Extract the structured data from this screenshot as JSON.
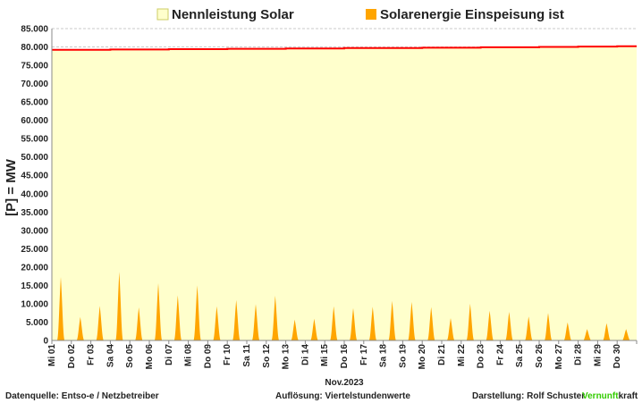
{
  "legend": {
    "capacity_label": "Nennleistung Solar",
    "feed_in_label": "Solarenergie Einspeisung ist"
  },
  "axis": {
    "ylabel": "[P] = MW",
    "xlabel": "Nov.2023"
  },
  "footer": {
    "source": "Datenquelle:  Entso-e  / Netzbetreiber",
    "resolution": "Auflösung: Viertelstundenwerte",
    "author": "Darstellung:  Rolf Schuster",
    "brand_green": "Vernunft",
    "brand_black": "kraft"
  },
  "colors": {
    "capacity_fill": "#ffffcc",
    "capacity_line": "#ff0000",
    "feed_in": "#ffa500",
    "grid": "#c8c8c8",
    "brand_green": "#33cc00"
  },
  "chart_data": {
    "type": "area",
    "ylim": [
      0,
      85000
    ],
    "yticks": [
      "0",
      "5.000",
      "10.000",
      "15.000",
      "20.000",
      "25.000",
      "30.000",
      "35.000",
      "40.000",
      "45.000",
      "50.000",
      "55.000",
      "60.000",
      "65.000",
      "70.000",
      "75.000",
      "80.000",
      "85.000"
    ],
    "categories": [
      "Mi 01",
      "Do 02",
      "Fr 03",
      "Sa 04",
      "So 05",
      "Mo 06",
      "Di 07",
      "Mi 08",
      "Do 09",
      "Fr 10",
      "Sa 11",
      "So 12",
      "Mo 13",
      "Di 14",
      "Mi 15",
      "Do 16",
      "Fr 17",
      "Sa 18",
      "So 19",
      "Mo 20",
      "Di 21",
      "Mi 22",
      "Do 23",
      "Fr 24",
      "Sa 25",
      "So 26",
      "Mo 27",
      "Di 28",
      "Mi 29",
      "Do 30"
    ],
    "series": [
      {
        "name": "Nennleistung Solar",
        "values": [
          79200,
          79200,
          79200,
          79300,
          79300,
          79300,
          79400,
          79400,
          79400,
          79500,
          79500,
          79500,
          79600,
          79600,
          79600,
          79700,
          79700,
          79700,
          79700,
          79800,
          79800,
          79800,
          79900,
          79900,
          79900,
          80000,
          80000,
          80100,
          80100,
          80200
        ]
      },
      {
        "name": "Solarenergie Einspeisung ist",
        "values": [
          17300,
          6400,
          9400,
          18700,
          9000,
          15600,
          12300,
          15000,
          9300,
          11000,
          9900,
          12200,
          5700,
          5900,
          9300,
          8800,
          9200,
          10800,
          10500,
          9100,
          6100,
          10000,
          8100,
          7800,
          6500,
          7500,
          4900,
          3100,
          4700,
          3100
        ]
      }
    ]
  }
}
